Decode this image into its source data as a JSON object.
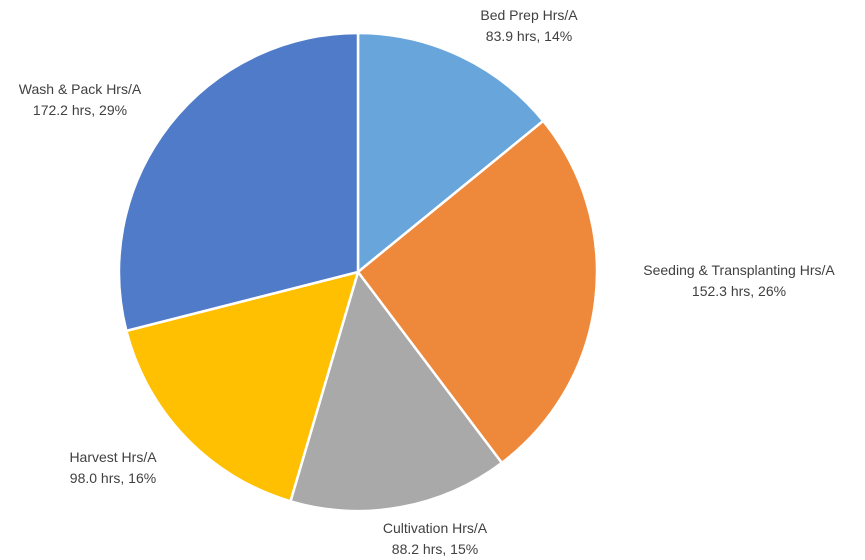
{
  "chart_data": {
    "type": "pie",
    "title": "",
    "slices": [
      {
        "label": "Bed Prep Hrs/A",
        "value": 83.9,
        "value_text": "83.9 hrs, 14%",
        "percent": 14,
        "color": "#68A5DB"
      },
      {
        "label": "Seeding & Transplanting Hrs/A",
        "value": 152.3,
        "value_text": "152.3 hrs, 26%",
        "percent": 26,
        "color": "#EE883B"
      },
      {
        "label": "Cultivation Hrs/A",
        "value": 88.2,
        "value_text": "88.2 hrs, 15%",
        "percent": 15,
        "color": "#A9A9A9"
      },
      {
        "label": "Harvest Hrs/A",
        "value": 98.0,
        "value_text": "98.0 hrs, 16%",
        "percent": 16,
        "color": "#FEC000"
      },
      {
        "label": "Wash & Pack Hrs/A",
        "value": 172.2,
        "value_text": "172.2 hrs, 29%",
        "percent": 29,
        "color": "#4F7BC8"
      }
    ],
    "start_angle_deg": 0,
    "direction": "clockwise",
    "legend": "none"
  }
}
